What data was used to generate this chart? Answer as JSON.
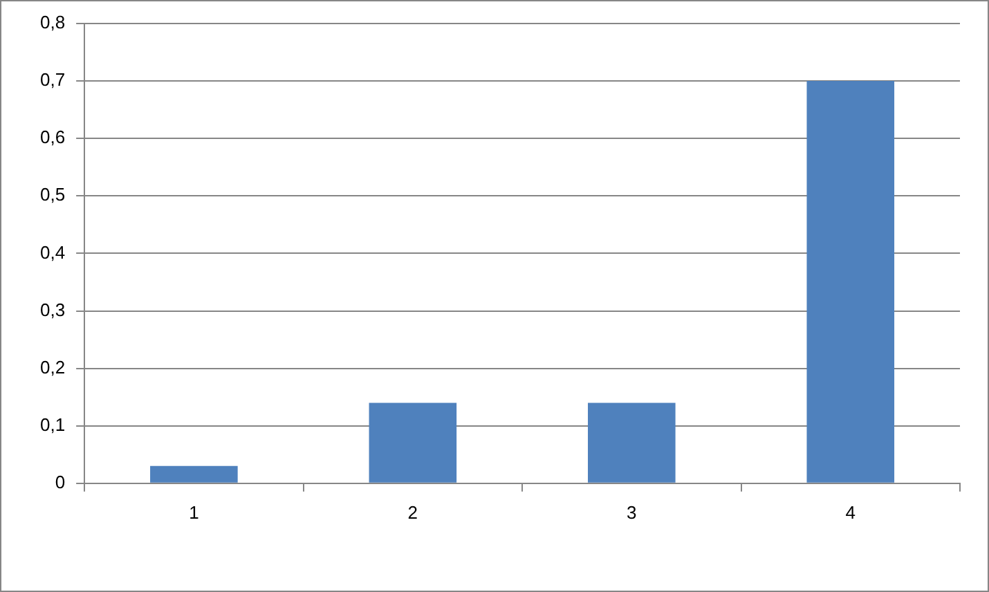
{
  "chart_data": {
    "type": "bar",
    "categories": [
      "1",
      "2",
      "3",
      "4"
    ],
    "values": [
      0.03,
      0.14,
      0.14,
      0.7
    ],
    "color": "#4f81bd",
    "ylim": [
      0,
      0.8
    ],
    "yticks": [
      0,
      {
        "value": 0.1,
        "label": "0,1"
      },
      {
        "value": 0.2,
        "label": "0,2"
      },
      {
        "value": 0.3,
        "label": "0,3"
      },
      {
        "value": 0.4,
        "label": "0,4"
      },
      {
        "value": 0.5,
        "label": "0,5"
      },
      {
        "value": 0.6,
        "label": "0,6"
      },
      {
        "value": 0.7,
        "label": "0,7"
      },
      {
        "value": 0.8,
        "label": "0,8"
      }
    ],
    "grid": "y"
  }
}
